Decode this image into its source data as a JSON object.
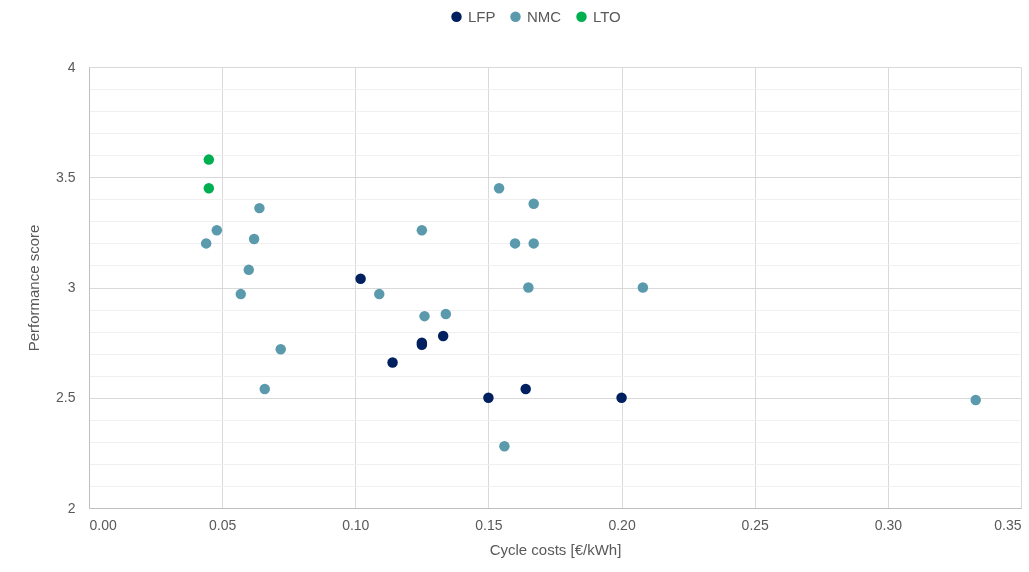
{
  "chart_data": {
    "type": "scatter",
    "xlabel": "Cycle costs [€/kWh]",
    "ylabel": "Performance score",
    "legend": "top",
    "grid": true,
    "marker": "circle",
    "xlim": [
      0,
      0.35
    ],
    "xticks": [
      {
        "value": 0,
        "label": "0.00"
      },
      {
        "value": 0.05,
        "label": "0.05"
      },
      {
        "value": 0.1,
        "label": "0.10"
      },
      {
        "value": 0.15,
        "label": "0.15"
      },
      {
        "value": 0.2,
        "label": "0.20"
      },
      {
        "value": 0.25,
        "label": "0.25"
      },
      {
        "value": 0.3,
        "label": "0.30"
      },
      {
        "value": 0.35,
        "label": "0.35"
      }
    ],
    "ylim": [
      2,
      4
    ],
    "yticks": [
      2,
      {
        "value": 2.1,
        "label": null
      },
      {
        "value": 2.2,
        "label": null
      },
      {
        "value": 2.3,
        "label": null
      },
      {
        "value": 2.4,
        "label": null
      },
      2.5,
      {
        "value": 2.6,
        "label": null
      },
      {
        "value": 2.7,
        "label": null
      },
      {
        "value": 2.8,
        "label": null
      },
      {
        "value": 2.9,
        "label": null
      },
      3,
      {
        "value": 3.1,
        "label": null
      },
      {
        "value": 3.2,
        "label": null
      },
      {
        "value": 3.3,
        "label": null
      },
      {
        "value": 3.4,
        "label": null
      },
      3.5,
      {
        "value": 3.6,
        "label": null
      },
      {
        "value": 3.7,
        "label": null
      },
      {
        "value": 3.8,
        "label": null
      },
      {
        "value": 3.9,
        "label": null
      },
      4
    ],
    "series": [
      {
        "name": "LFP",
        "color": "#002060",
        "x": [
          0.102,
          0.125,
          0.125,
          0.133,
          0.114,
          0.15,
          0.164,
          0.2
        ],
        "values": [
          3.04,
          2.75,
          2.74,
          2.78,
          2.66,
          2.5,
          2.54,
          2.5
        ]
      },
      {
        "name": "NMC",
        "color": "#5b9aad",
        "x": [
          0.044,
          0.048,
          0.064,
          0.062,
          0.06,
          0.057,
          0.072,
          0.066,
          0.109,
          0.125,
          0.126,
          0.134,
          0.154,
          0.167,
          0.16,
          0.167,
          0.165,
          0.208,
          0.333,
          0.156
        ],
        "values": [
          3.2,
          3.26,
          3.36,
          3.22,
          3.08,
          2.97,
          2.72,
          2.54,
          2.97,
          3.26,
          2.87,
          2.88,
          3.45,
          3.38,
          3.2,
          3.2,
          3.0,
          3.0,
          2.49,
          2.28
        ]
      },
      {
        "name": "LTO",
        "color": "#00b050",
        "x": [
          0.045,
          0.045
        ],
        "values": [
          3.58,
          3.45
        ]
      }
    ]
  }
}
